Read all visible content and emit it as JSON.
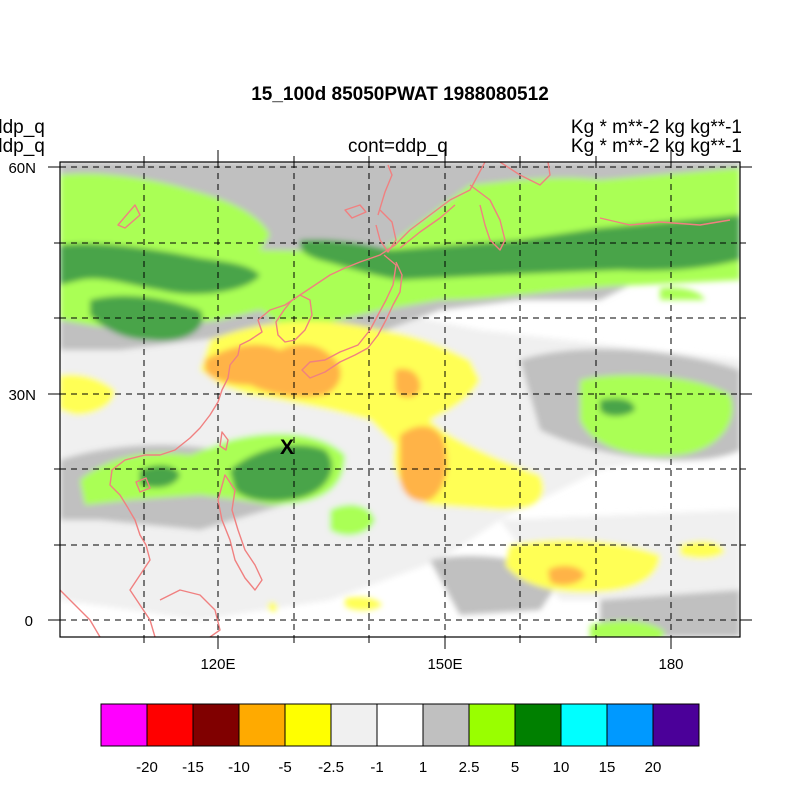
{
  "title": "15_100d 85050PWAT  1988080512",
  "left_labels": [
    "ddp_q",
    "ddp_q"
  ],
  "right_labels": [
    "Kg  * m**-2 kg kg**-1",
    "Kg  * m**-2 kg kg**-1"
  ],
  "center_label": "cont=ddp_q",
  "marker": "X",
  "map": {
    "lon_range": [
      100,
      190
    ],
    "lat_range": [
      -2,
      61
    ],
    "lat_ticks": [
      {
        "value": 60,
        "label": "60N"
      },
      {
        "value": 30,
        "label": "30N"
      },
      {
        "value": 0,
        "label": "0"
      }
    ],
    "lon_ticks": [
      {
        "value": 120,
        "label": "120E"
      },
      {
        "value": 150,
        "label": "150E"
      },
      {
        "value": 180,
        "label": "180"
      }
    ],
    "coastline_color": "#f08080",
    "grid_style": "dashed"
  },
  "colorbar": {
    "colors": [
      "#ff00ff",
      "#ff0000",
      "#800000",
      "#ffaa00",
      "#ffff00",
      "#f0f0f0",
      "#ffffff",
      "#c0c0c0",
      "#99ff00",
      "#008000",
      "#00ffff",
      "#0099ff",
      "#4b0099"
    ],
    "labels": [
      "-20",
      "-15",
      "-10",
      "-5",
      "-2.5",
      "-1",
      "1",
      "2.5",
      "5",
      "10",
      "15",
      "20"
    ]
  }
}
